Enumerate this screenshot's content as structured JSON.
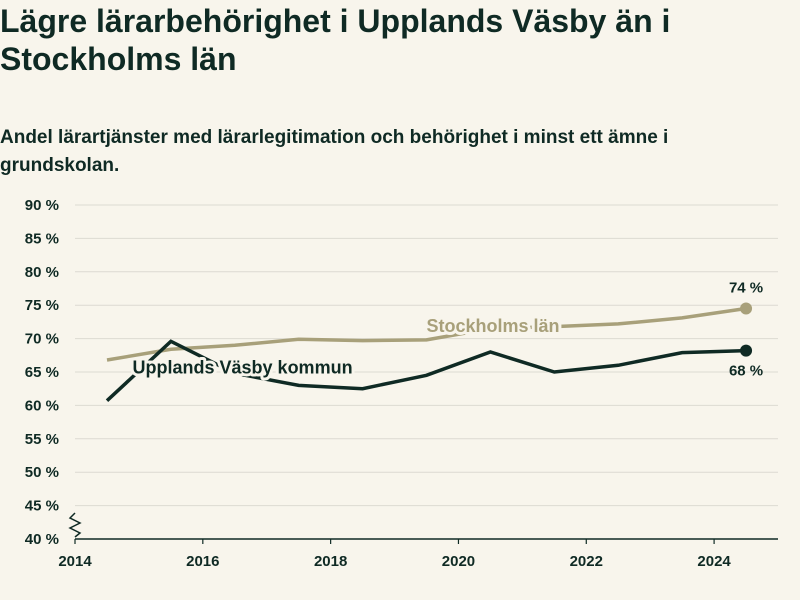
{
  "title": "Lägre lärarbehörighet i Upplands Väsby än i Stockholms län",
  "subtitle": "Andel lärartjänster med lärarlegitimation och behörighet i minst ett ämne i grundskolan.",
  "colors": {
    "background": "#f8f5ec",
    "text": "#0f2a24",
    "grid": "#dcdad2",
    "axis": "#0f2a24",
    "stockholm": "#a8a07a",
    "vasby": "#0f2a24"
  },
  "chart_data": {
    "type": "line",
    "x_ticks": [
      2014,
      2016,
      2018,
      2020,
      2022,
      2024
    ],
    "y_ticks": [
      40,
      45,
      50,
      55,
      60,
      65,
      70,
      75,
      80,
      85,
      90
    ],
    "y_tick_labels": [
      "40 %",
      "45 %",
      "50 %",
      "55 %",
      "60 %",
      "65 %",
      "70 %",
      "75 %",
      "80 %",
      "85 %",
      "90 %"
    ],
    "xlim": [
      2014,
      2025
    ],
    "ylim": [
      40,
      90
    ],
    "y_axis_break": true,
    "grid": true,
    "series": [
      {
        "name": "Stockholms län",
        "color": "#a8a07a",
        "x": [
          2014.5,
          2015.5,
          2016.5,
          2017.5,
          2018.5,
          2019.5,
          2020.5,
          2021.5,
          2022.5,
          2023.5,
          2024.5
        ],
        "values": [
          66.8,
          68.4,
          69.0,
          69.9,
          69.7,
          69.8,
          71.5,
          71.8,
          72.2,
          73.1,
          74.5
        ],
        "end_label": "74 %",
        "label_position": [
          2019.5,
          71.0
        ]
      },
      {
        "name": "Upplands Väsby kommun",
        "color": "#0f2a24",
        "x": [
          2014.5,
          2015.5,
          2016.5,
          2017.5,
          2018.5,
          2019.5,
          2020.5,
          2021.5,
          2022.5,
          2023.5,
          2024.5
        ],
        "values": [
          60.7,
          69.6,
          64.8,
          63.0,
          62.5,
          64.5,
          68.0,
          65.0,
          66.0,
          67.9,
          68.2
        ],
        "end_label": "68 %",
        "label_position": [
          2014.9,
          64.8
        ]
      }
    ]
  }
}
